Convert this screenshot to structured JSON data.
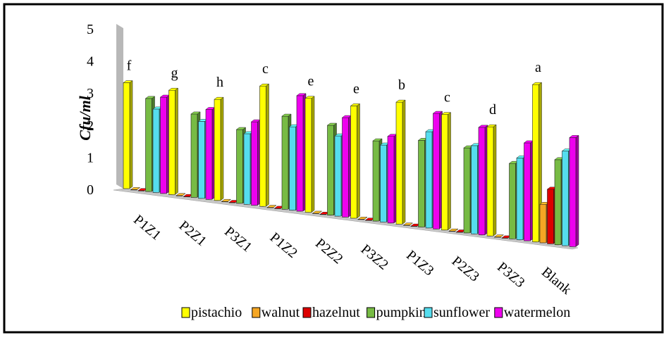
{
  "chart_data": {
    "type": "bar",
    "ylabel": "Cfu/ml",
    "ylim": [
      0,
      5
    ],
    "yticks": [
      "0",
      "1",
      "2",
      "3",
      "4",
      "5"
    ],
    "categories": [
      "P1Z1",
      "P2Z1",
      "P3Z1",
      "P1Z2",
      "P2Z2",
      "P3Z2",
      "P1Z3",
      "P2Z3",
      "P3Z3",
      "Blank"
    ],
    "group_letters": [
      "f",
      "g",
      "h",
      "c",
      "e",
      "e",
      "b",
      "c",
      "d",
      "a"
    ],
    "series": [
      {
        "name": "pistachio",
        "color": "#ffff00",
        "values": [
          3.3,
          3.25,
          3.15,
          3.75,
          3.55,
          3.5,
          3.8,
          3.6,
          3.4,
          4.9
        ]
      },
      {
        "name": "walnut",
        "color": "#f5a623",
        "values": [
          0,
          0,
          0,
          0,
          0,
          0,
          0,
          0,
          0,
          1.2
        ]
      },
      {
        "name": "hazelnut",
        "color": "#dd0000",
        "values": [
          0,
          0,
          0,
          0,
          0,
          0,
          0,
          0,
          0,
          1.7
        ]
      },
      {
        "name": "pumpkin",
        "color": "#77bb44",
        "values": [
          2.9,
          2.6,
          2.3,
          2.9,
          2.8,
          2.5,
          2.7,
          2.65,
          2.35,
          2.65
        ]
      },
      {
        "name": "sunflower",
        "color": "#55ddee",
        "values": [
          2.6,
          2.4,
          2.2,
          2.6,
          2.5,
          2.4,
          3.0,
          2.75,
          2.55,
          2.95
        ]
      },
      {
        "name": "watermelon",
        "color": "#ee00ee",
        "values": [
          3.0,
          2.8,
          2.6,
          3.6,
          3.1,
          2.7,
          3.6,
          3.35,
          3.05,
          3.4
        ]
      }
    ]
  }
}
